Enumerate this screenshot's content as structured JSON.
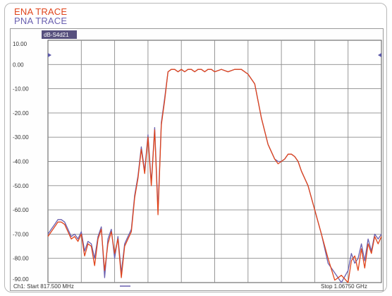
{
  "legend": {
    "ena": "ENA TRACE",
    "pna": "PNA TRACE"
  },
  "trace_label": "dB-S4d21",
  "footer": {
    "channel_start": "Ch1: Start 817.500 MHz",
    "stop": "Stop 1.06750 GHz"
  },
  "chart_data": {
    "type": "line",
    "title": "",
    "xlabel": "",
    "ylabel": "",
    "xlim": [
      0,
      100
    ],
    "ylim": [
      -90,
      10
    ],
    "y_ticks": [
      "10.00",
      "0.00",
      "-10.00",
      "-20.00",
      "-30.00",
      "-40.00",
      "-50.00",
      "-60.00",
      "-70.00",
      "-80.00",
      "-90.00"
    ],
    "series": [
      {
        "name": "ENA TRACE",
        "color": "#e0451c",
        "x": [
          0,
          1,
          2,
          3,
          4,
          5,
          6,
          7,
          8,
          9,
          10,
          11,
          12,
          13,
          14,
          15,
          16,
          17,
          18,
          19,
          20,
          21,
          22,
          23,
          24,
          25,
          26,
          27,
          28,
          29,
          30,
          31,
          32,
          33,
          34,
          35,
          36,
          37,
          38,
          39,
          40,
          41,
          42,
          43,
          44,
          45,
          46,
          47,
          48,
          49,
          50,
          52,
          54,
          56,
          58,
          60,
          62,
          64,
          66,
          67,
          68,
          69,
          70,
          71,
          72,
          73,
          74,
          75,
          76,
          78,
          80,
          82,
          84,
          86,
          88,
          90,
          91,
          92,
          93,
          94,
          95,
          96,
          97,
          98,
          99,
          100
        ],
        "y": [
          -71,
          -69,
          -67,
          -65,
          -65,
          -66,
          -69,
          -72,
          -71,
          -73,
          -70,
          -79,
          -74,
          -75,
          -83,
          -72,
          -68,
          -85,
          -74,
          -69,
          -78,
          -72,
          -88,
          -75,
          -72,
          -69,
          -55,
          -47,
          -35,
          -45,
          -30,
          -50,
          -27,
          -62,
          -25,
          -15,
          -3,
          -2,
          -2,
          -3,
          -2,
          -3,
          -2,
          -2,
          -3,
          -2,
          -2,
          -3,
          -2,
          -2,
          -3,
          -2,
          -3,
          -2,
          -2,
          -4,
          -8,
          -22,
          -33,
          -36,
          -39,
          -41,
          -40,
          -39,
          -37,
          -37,
          -38,
          -40,
          -44,
          -50,
          -60,
          -70,
          -80,
          -89,
          -87,
          -90,
          -81,
          -79,
          -85,
          -76,
          -84,
          -74,
          -78,
          -71,
          -74,
          -71
        ]
      },
      {
        "name": "PNA TRACE",
        "color": "#6a60b0",
        "x": [
          0,
          1,
          2,
          3,
          4,
          5,
          6,
          7,
          8,
          9,
          10,
          11,
          12,
          13,
          14,
          15,
          16,
          17,
          18,
          19,
          20,
          21,
          22,
          23,
          24,
          25,
          26,
          27,
          28,
          29,
          30,
          31,
          32,
          33,
          34,
          35,
          36,
          37,
          38,
          39,
          40,
          41,
          42,
          43,
          44,
          45,
          46,
          47,
          48,
          49,
          50,
          52,
          54,
          56,
          58,
          60,
          62,
          64,
          66,
          67,
          68,
          69,
          70,
          71,
          72,
          73,
          74,
          75,
          76,
          78,
          80,
          82,
          84,
          86,
          88,
          90,
          91,
          92,
          93,
          94,
          95,
          96,
          97,
          98,
          99,
          100
        ],
        "y": [
          -70,
          -68,
          -66,
          -64,
          -64,
          -65,
          -68,
          -71,
          -70,
          -72,
          -69,
          -77,
          -73,
          -74,
          -80,
          -71,
          -67,
          -88,
          -72,
          -68,
          -80,
          -71,
          -86,
          -74,
          -71,
          -68,
          -54,
          -46,
          -34,
          -44,
          -29,
          -49,
          -26,
          -60,
          -24,
          -14,
          -3,
          -2,
          -2,
          -3,
          -2,
          -3,
          -2,
          -2,
          -3,
          -2,
          -2,
          -3,
          -2,
          -2,
          -3,
          -2,
          -3,
          -2,
          -2,
          -4,
          -8,
          -22,
          -33,
          -36,
          -39,
          -40,
          -40,
          -39,
          -37,
          -37,
          -38,
          -40,
          -44,
          -50,
          -60,
          -70,
          -82,
          -86,
          -90,
          -85,
          -78,
          -82,
          -80,
          -74,
          -81,
          -72,
          -77,
          -70,
          -72,
          -70
        ]
      }
    ]
  }
}
